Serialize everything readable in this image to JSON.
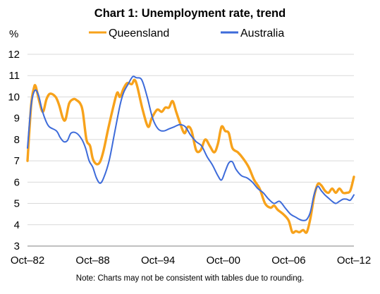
{
  "chart_data": {
    "type": "line",
    "title": "Chart 1: Unemployment rate, trend",
    "ylabel": "%",
    "xlabel": "",
    "ylim": [
      3,
      12
    ],
    "yticks": [
      3,
      4,
      5,
      6,
      7,
      8,
      9,
      10,
      11,
      12
    ],
    "xlim": [
      "1982-10",
      "2012-10"
    ],
    "xticks": [
      {
        "date": "1982-10",
        "label": "Oct–82"
      },
      {
        "date": "1988-10",
        "label": "Oct–88"
      },
      {
        "date": "1994-10",
        "label": "Oct–94"
      },
      {
        "date": "2000-10",
        "label": "Oct–00"
      },
      {
        "date": "2006-10",
        "label": "Oct–06"
      },
      {
        "date": "2012-10",
        "label": "Oct–12"
      }
    ],
    "grid": true,
    "legend_position": "top",
    "note": "Note: Charts may not be consistent with tables due to rounding.",
    "series": [
      {
        "name": "Queensland",
        "color": "#f7a21b",
        "points": [
          [
            "1982-10",
            7.0
          ],
          [
            "1983-02",
            9.6
          ],
          [
            "1983-05",
            10.4
          ],
          [
            "1983-07",
            10.5
          ],
          [
            "1983-11",
            9.8
          ],
          [
            "1984-03",
            9.3
          ],
          [
            "1984-07",
            9.9
          ],
          [
            "1984-11",
            10.15
          ],
          [
            "1985-05",
            10.0
          ],
          [
            "1985-09",
            9.6
          ],
          [
            "1986-01",
            9.0
          ],
          [
            "1986-04",
            8.95
          ],
          [
            "1986-08",
            9.7
          ],
          [
            "1987-01",
            9.9
          ],
          [
            "1987-04",
            9.85
          ],
          [
            "1987-08",
            9.7
          ],
          [
            "1987-11",
            9.3
          ],
          [
            "1988-03",
            8.0
          ],
          [
            "1988-07",
            7.7
          ],
          [
            "1988-10",
            7.1
          ],
          [
            "1989-02",
            6.85
          ],
          [
            "1989-06",
            6.95
          ],
          [
            "1989-10",
            7.5
          ],
          [
            "1990-03",
            8.5
          ],
          [
            "1990-09",
            9.6
          ],
          [
            "1991-01",
            10.2
          ],
          [
            "1991-04",
            10.0
          ],
          [
            "1991-08",
            10.4
          ],
          [
            "1991-12",
            10.65
          ],
          [
            "1992-05",
            10.6
          ],
          [
            "1992-08",
            10.8
          ],
          [
            "1992-11",
            10.5
          ],
          [
            "1993-05",
            9.4
          ],
          [
            "1993-11",
            8.6
          ],
          [
            "1994-03",
            9.0
          ],
          [
            "1994-09",
            9.4
          ],
          [
            "1995-02",
            9.3
          ],
          [
            "1995-06",
            9.5
          ],
          [
            "1995-10",
            9.5
          ],
          [
            "1996-02",
            9.8
          ],
          [
            "1996-06",
            9.3
          ],
          [
            "1996-10",
            8.8
          ],
          [
            "1997-03",
            8.3
          ],
          [
            "1997-07",
            8.6
          ],
          [
            "1997-11",
            8.4
          ],
          [
            "1998-04",
            7.5
          ],
          [
            "1998-09",
            7.5
          ],
          [
            "1999-02",
            8.0
          ],
          [
            "1999-07",
            7.7
          ],
          [
            "1999-12",
            7.4
          ],
          [
            "2000-04",
            7.8
          ],
          [
            "2000-08",
            8.6
          ],
          [
            "2000-12",
            8.4
          ],
          [
            "2001-04",
            8.3
          ],
          [
            "2001-08",
            7.6
          ],
          [
            "2002-02",
            7.4
          ],
          [
            "2002-08",
            7.1
          ],
          [
            "2003-02",
            6.7
          ],
          [
            "2003-08",
            6.1
          ],
          [
            "2004-02",
            5.7
          ],
          [
            "2004-08",
            5.0
          ],
          [
            "2005-02",
            4.8
          ],
          [
            "2005-06",
            4.9
          ],
          [
            "2005-10",
            4.7
          ],
          [
            "2006-04",
            4.5
          ],
          [
            "2006-10",
            4.2
          ],
          [
            "2007-02",
            3.65
          ],
          [
            "2007-06",
            3.7
          ],
          [
            "2007-10",
            3.65
          ],
          [
            "2008-02",
            3.75
          ],
          [
            "2008-06",
            3.65
          ],
          [
            "2008-10",
            4.3
          ],
          [
            "2009-02",
            5.3
          ],
          [
            "2009-06",
            5.9
          ],
          [
            "2009-10",
            5.85
          ],
          [
            "2010-02",
            5.6
          ],
          [
            "2010-06",
            5.5
          ],
          [
            "2010-10",
            5.7
          ],
          [
            "2011-02",
            5.5
          ],
          [
            "2011-06",
            5.7
          ],
          [
            "2011-10",
            5.5
          ],
          [
            "2012-02",
            5.5
          ],
          [
            "2012-06",
            5.6
          ],
          [
            "2012-10",
            6.25
          ]
        ]
      },
      {
        "name": "Australia",
        "color": "#3d6bda",
        "points": [
          [
            "1982-10",
            7.6
          ],
          [
            "1983-02",
            9.6
          ],
          [
            "1983-06",
            10.3
          ],
          [
            "1983-10",
            10.1
          ],
          [
            "1984-02",
            9.4
          ],
          [
            "1984-06",
            8.9
          ],
          [
            "1984-10",
            8.6
          ],
          [
            "1985-06",
            8.4
          ],
          [
            "1985-10",
            8.1
          ],
          [
            "1986-02",
            7.9
          ],
          [
            "1986-06",
            7.95
          ],
          [
            "1986-10",
            8.3
          ],
          [
            "1987-04",
            8.3
          ],
          [
            "1987-10",
            8.0
          ],
          [
            "1988-02",
            7.6
          ],
          [
            "1988-06",
            7.0
          ],
          [
            "1988-10",
            6.7
          ],
          [
            "1989-02",
            6.2
          ],
          [
            "1989-06",
            5.95
          ],
          [
            "1989-10",
            6.2
          ],
          [
            "1990-04",
            7.0
          ],
          [
            "1990-10",
            8.3
          ],
          [
            "1991-04",
            9.6
          ],
          [
            "1991-08",
            10.2
          ],
          [
            "1992-01",
            10.6
          ],
          [
            "1992-06",
            10.95
          ],
          [
            "1992-10",
            10.9
          ],
          [
            "1993-04",
            10.8
          ],
          [
            "1993-10",
            10.0
          ],
          [
            "1994-04",
            9.0
          ],
          [
            "1994-10",
            8.5
          ],
          [
            "1995-04",
            8.4
          ],
          [
            "1995-10",
            8.5
          ],
          [
            "1996-04",
            8.6
          ],
          [
            "1996-10",
            8.7
          ],
          [
            "1997-04",
            8.6
          ],
          [
            "1997-10",
            8.2
          ],
          [
            "1998-04",
            7.9
          ],
          [
            "1998-10",
            7.7
          ],
          [
            "1999-04",
            7.2
          ],
          [
            "1999-10",
            6.8
          ],
          [
            "2000-04",
            6.3
          ],
          [
            "2000-08",
            6.1
          ],
          [
            "2000-12",
            6.5
          ],
          [
            "2001-04",
            6.9
          ],
          [
            "2001-08",
            6.95
          ],
          [
            "2001-12",
            6.6
          ],
          [
            "2002-06",
            6.3
          ],
          [
            "2002-12",
            6.2
          ],
          [
            "2003-06",
            6.0
          ],
          [
            "2003-12",
            5.7
          ],
          [
            "2004-06",
            5.5
          ],
          [
            "2004-12",
            5.2
          ],
          [
            "2005-06",
            5.0
          ],
          [
            "2005-12",
            5.1
          ],
          [
            "2006-06",
            4.8
          ],
          [
            "2006-12",
            4.5
          ],
          [
            "2007-06",
            4.35
          ],
          [
            "2007-10",
            4.25
          ],
          [
            "2008-02",
            4.2
          ],
          [
            "2008-06",
            4.25
          ],
          [
            "2008-10",
            4.6
          ],
          [
            "2009-02",
            5.4
          ],
          [
            "2009-06",
            5.8
          ],
          [
            "2009-10",
            5.6
          ],
          [
            "2010-02",
            5.4
          ],
          [
            "2010-06",
            5.25
          ],
          [
            "2010-10",
            5.1
          ],
          [
            "2011-02",
            5.0
          ],
          [
            "2011-06",
            5.1
          ],
          [
            "2011-10",
            5.2
          ],
          [
            "2012-02",
            5.2
          ],
          [
            "2012-06",
            5.15
          ],
          [
            "2012-10",
            5.4
          ]
        ]
      }
    ]
  }
}
